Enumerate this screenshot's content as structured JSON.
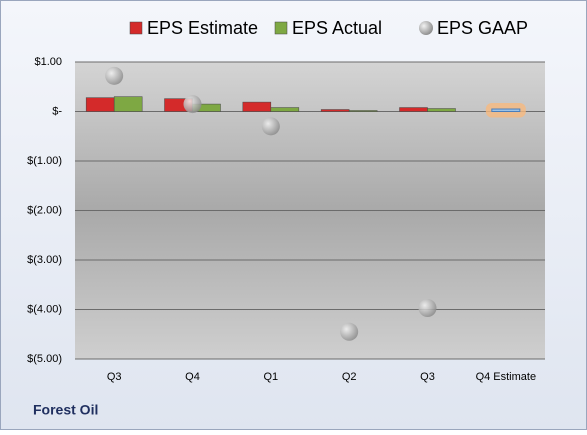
{
  "chart_data": {
    "type": "bar",
    "categories": [
      "Q3",
      "Q4",
      "Q1",
      "Q2",
      "Q3",
      "Q4 Estimate"
    ],
    "series": [
      {
        "name": "EPS Estimate",
        "color": "#d42a2a",
        "highlight_color": "#f7b97e",
        "values": [
          0.28,
          0.26,
          0.19,
          0.04,
          0.08,
          0.05
        ]
      },
      {
        "name": "EPS Actual",
        "color": "#7ea843",
        "values": [
          0.3,
          0.15,
          0.08,
          0.02,
          0.06,
          null
        ]
      },
      {
        "name": "EPS GAAP",
        "color": "#a6a6a6",
        "type": "scatter",
        "values": [
          0.72,
          0.15,
          -0.3,
          -4.45,
          -3.97,
          null
        ]
      }
    ],
    "ylim": [
      -5,
      1
    ],
    "yticks": [
      {
        "value": 1,
        "label": "$1.00"
      },
      {
        "value": 0,
        "label": "$-"
      },
      {
        "value": -1,
        "label": "$(1.00)"
      },
      {
        "value": -2,
        "label": "$(2.00)"
      },
      {
        "value": -3,
        "label": "$(3.00)"
      },
      {
        "value": -4,
        "label": "$(4.00)"
      },
      {
        "value": -5,
        "label": "$(5.00)"
      }
    ],
    "grid": true,
    "footer": "Forest Oil"
  }
}
